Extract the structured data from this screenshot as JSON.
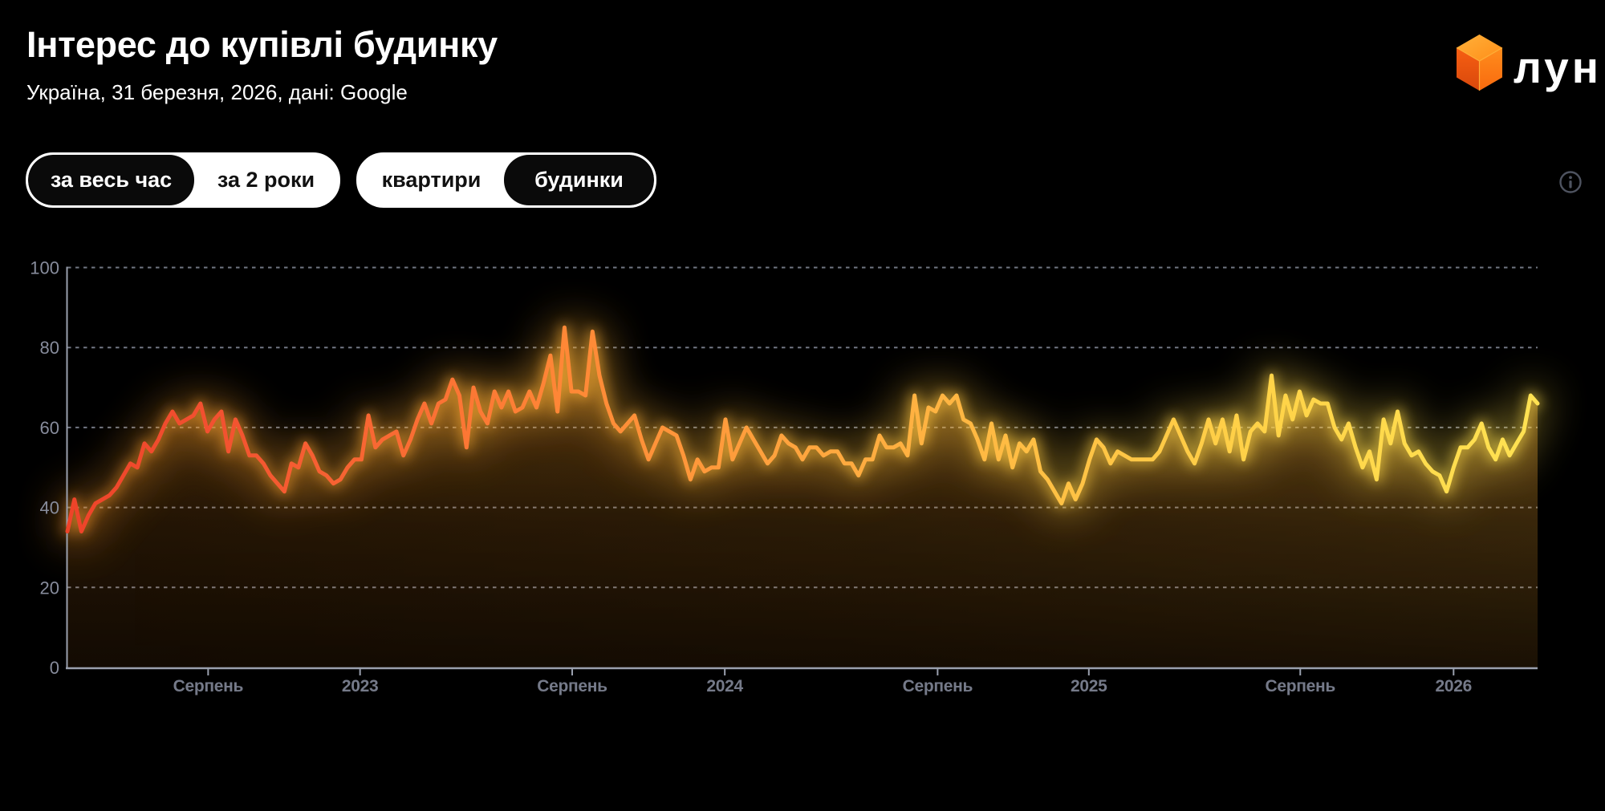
{
  "header": {
    "title": "Інтерес до купівлі будинку",
    "subtitle": "Україна, 31 березня, 2026, дані: Google"
  },
  "logo": {
    "text": "лун",
    "cube_top_color": "#ff9022",
    "cube_left_color": "#e1490b",
    "cube_right_color": "#fd690f"
  },
  "controls": {
    "time_range": [
      {
        "label": "за весь час",
        "selected": true
      },
      {
        "label": "за 2 роки",
        "selected": false
      }
    ],
    "property_type": [
      {
        "label": "квартири",
        "selected": false
      },
      {
        "label": "будинки",
        "selected": true
      }
    ],
    "info_icon": "info-icon"
  },
  "chart_data": {
    "type": "line",
    "title": "Інтерес до купівлі будинку",
    "xlabel": "",
    "ylabel": "",
    "ylim": [
      0,
      100
    ],
    "y_ticks": [
      0,
      20,
      40,
      60,
      80,
      100
    ],
    "grid": "dashed-horizontal",
    "legend": "none",
    "x_unit": "week",
    "x_ticks": [
      {
        "label": "Серпень",
        "week": 20.1
      },
      {
        "label": "2023",
        "week": 41.8
      },
      {
        "label": "Серпень",
        "week": 72.1
      },
      {
        "label": "2024",
        "week": 93.9
      },
      {
        "label": "Серпень",
        "week": 124.3
      },
      {
        "label": "2025",
        "week": 145.9
      },
      {
        "label": "Серпень",
        "week": 176.1
      },
      {
        "label": "2026",
        "week": 198.0
      }
    ],
    "line_gradient": [
      {
        "at": 0.0,
        "color": "#ee4329"
      },
      {
        "at": 0.1,
        "color": "#f25130"
      },
      {
        "at": 0.22,
        "color": "#f96a33"
      },
      {
        "at": 0.34,
        "color": "#ff8836"
      },
      {
        "at": 0.5,
        "color": "#ffa53e"
      },
      {
        "at": 0.66,
        "color": "#ffbf44"
      },
      {
        "at": 0.82,
        "color": "#ffd348"
      },
      {
        "at": 1.0,
        "color": "#ffe252"
      }
    ],
    "glow_gradient": [
      {
        "at": 0.0,
        "color": "#e8902a"
      },
      {
        "at": 0.35,
        "color": "#f7ac34"
      },
      {
        "at": 0.7,
        "color": "#ffcf44"
      },
      {
        "at": 1.0,
        "color": "#ffe04e"
      }
    ],
    "axis_color": "#9aa0ae",
    "grid_color": "#878c9c",
    "y_label_color": "#878c9c",
    "x_label_color": "#757a89",
    "values": [
      34,
      42,
      34,
      38,
      41,
      42,
      43,
      45,
      48,
      51,
      50,
      56,
      54,
      57,
      61,
      64,
      61,
      62,
      63,
      66,
      59,
      62,
      64,
      54,
      62,
      58,
      53,
      53,
      51,
      48,
      46,
      44,
      51,
      50,
      56,
      53,
      49,
      48,
      46,
      47,
      50,
      52,
      52,
      63,
      55,
      57,
      58,
      59,
      53,
      57,
      62,
      66,
      61,
      66,
      67,
      72,
      68,
      55,
      70,
      64,
      61,
      69,
      65,
      69,
      64,
      65,
      69,
      65,
      71,
      78,
      64,
      85,
      69,
      69,
      68,
      84,
      73,
      66,
      61,
      59,
      61,
      63,
      57,
      52,
      56,
      60,
      59,
      58,
      53,
      47,
      52,
      49,
      50,
      50,
      62,
      52,
      56,
      60,
      57,
      54,
      51,
      53,
      58,
      56,
      55,
      52,
      55,
      55,
      53,
      54,
      54,
      51,
      51,
      48,
      52,
      52,
      58,
      55,
      55,
      56,
      53,
      68,
      56,
      65,
      64,
      68,
      66,
      68,
      62,
      61,
      57,
      52,
      61,
      52,
      58,
      50,
      56,
      54,
      57,
      49,
      47,
      44,
      41,
      46,
      42,
      46,
      52,
      57,
      55,
      51,
      54,
      53,
      52,
      52,
      52,
      52,
      54,
      58,
      62,
      58,
      54,
      51,
      56,
      62,
      56,
      62,
      54,
      63,
      52,
      59,
      61,
      59,
      73,
      58,
      68,
      62,
      69,
      63,
      67,
      66,
      66,
      60,
      57,
      61,
      55,
      50,
      54,
      47,
      62,
      56,
      64,
      56,
      53,
      54,
      51,
      49,
      48,
      44,
      50,
      55,
      55,
      57,
      61,
      55,
      52,
      57,
      53,
      56,
      59,
      68,
      66
    ]
  }
}
